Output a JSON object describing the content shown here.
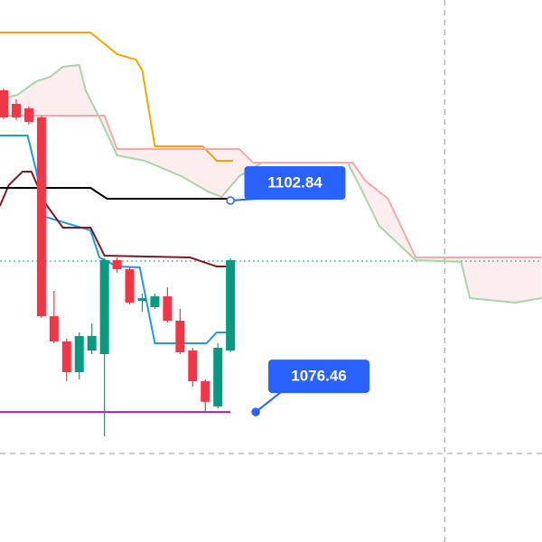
{
  "chart_data": {
    "type": "candlestick",
    "xlim": [
      -0.29,
      42.72
    ],
    "ylim": [
      1060.24,
      1127.86
    ],
    "up_color": "#089981",
    "down_color": "#f23645",
    "x": [
      0,
      1,
      2,
      3,
      4,
      5,
      6,
      7,
      8,
      9,
      10,
      11,
      12,
      13,
      14,
      15,
      16,
      17,
      18
    ],
    "open": [
      1116.59,
      1114.9,
      1114.34,
      1113.21,
      1088.41,
      1085.26,
      1081.43,
      1084.13,
      1083.68,
      1095.4,
      1094.27,
      1090.33,
      1089.54,
      1090.89,
      1087.85,
      1084.13,
      1080.3,
      1077.15,
      1084.13
    ],
    "high": [
      1116.82,
      1115.46,
      1114.56,
      1113.43,
      1091.57,
      1085.6,
      1086.39,
      1087.51,
      1095.63,
      1095.74,
      1094.5,
      1091.23,
      1091.23,
      1092.02,
      1089.32,
      1084.47,
      1080.53,
      1085.03,
      1095.63
    ],
    "low": [
      1113.0,
      1112.87,
      1112.31,
      1088.19,
      1085.03,
      1080.3,
      1080.53,
      1083.68,
      1073.43,
      1093.82,
      1089.88,
      1088.98,
      1089.32,
      1087.62,
      1083.68,
      1079.62,
      1076.58,
      1076.92,
      1083.91
    ],
    "close": [
      1113.21,
      1113.21,
      1112.65,
      1088.41,
      1085.26,
      1081.43,
      1085.94,
      1085.94,
      1095.4,
      1094.27,
      1090.11,
      1090.67,
      1090.89,
      1087.85,
      1083.91,
      1080.3,
      1077.73,
      1084.47,
      1095.4
    ],
    "lines": [
      {
        "color": "#f7a600",
        "x": [
          -0.3,
          6.9,
          9.0,
          10.5,
          11.0,
          12.0,
          15.8,
          16.9,
          18.2
        ],
        "values": [
          1123.8,
          1123.8,
          1121.1,
          1120.42,
          1119.07,
          1109.6,
          1109.6,
          1107.8,
          1107.8
        ]
      },
      {
        "color": "#2196f3",
        "x": [
          -0.3,
          1.9,
          2.6,
          3.3,
          6.9,
          7.6,
          9.0,
          10.8,
          12.0,
          16.1,
          16.9,
          17.8
        ],
        "values": [
          1110.95,
          1110.95,
          1106.45,
          1100.81,
          1099.12,
          1095.74,
          1094.61,
          1094.5,
          1085.03,
          1085.03,
          1086.39,
          1086.39
        ]
      },
      {
        "color": "#801922",
        "x": [
          -0.3,
          0.4,
          1.5,
          2.2,
          3.3,
          4.7,
          6.9,
          8.0,
          14.8,
          16.9,
          18.0
        ],
        "values": [
          1102.16,
          1104.75,
          1106.45,
          1106.45,
          1102.5,
          1099.46,
          1099.46,
          1095.97,
          1095.74,
          1094.61,
          1094.61
        ]
      },
      {
        "color": "#000000",
        "x": [
          -0.3,
          6.9,
          8.2,
          18.0
        ],
        "values": [
          1104.42,
          1104.42,
          1103.07,
          1103.07
        ]
      },
      {
        "color": "#a5d6a7",
        "x": [
          -0.3,
          1.1,
          2.6,
          3.7,
          4.7,
          6.0,
          6.5,
          7.6,
          9.0,
          11.2,
          14.1,
          16.2,
          17.3,
          18.7,
          20.5,
          27.3,
          28.4,
          29.8,
          32.7,
          36.3,
          37.0,
          40.6,
          42.7
        ],
        "values": [
          1115.46,
          1116.03,
          1117.72,
          1118.28,
          1119.52,
          1119.75,
          1116.59,
          1113.21,
          1108.48,
          1107.8,
          1105.88,
          1103.97,
          1103.29,
          1105.88,
          1107.57,
          1107.57,
          1104.19,
          1099.68,
          1095.4,
          1095.18,
          1090.67,
          1090.11,
          1090.67
        ]
      },
      {
        "color": "#f7a9a7",
        "x": [
          -0.3,
          8.0,
          9.0,
          18.7,
          19.8,
          27.7,
          28.7,
          30.5,
          32.7,
          42.7
        ],
        "values": [
          1113.43,
          1113.43,
          1109.26,
          1109.26,
          1107.57,
          1107.57,
          1105.32,
          1103.07,
          1095.74,
          1095.74
        ]
      }
    ],
    "price_line": {
      "value": 1095.29,
      "color": "#089981"
    },
    "support_line": {
      "value": 1076.46,
      "x": [
        -0.3,
        18.0
      ],
      "color": "#9c27b0"
    },
    "crosshair": {
      "x": 35.0,
      "y": 1071.28
    },
    "annotations": [
      {
        "value": 1102.84,
        "x": 18.0,
        "box_x": 19.1
      },
      {
        "value": 1076.46,
        "x": 20.0,
        "box_x": 21.0
      }
    ]
  }
}
